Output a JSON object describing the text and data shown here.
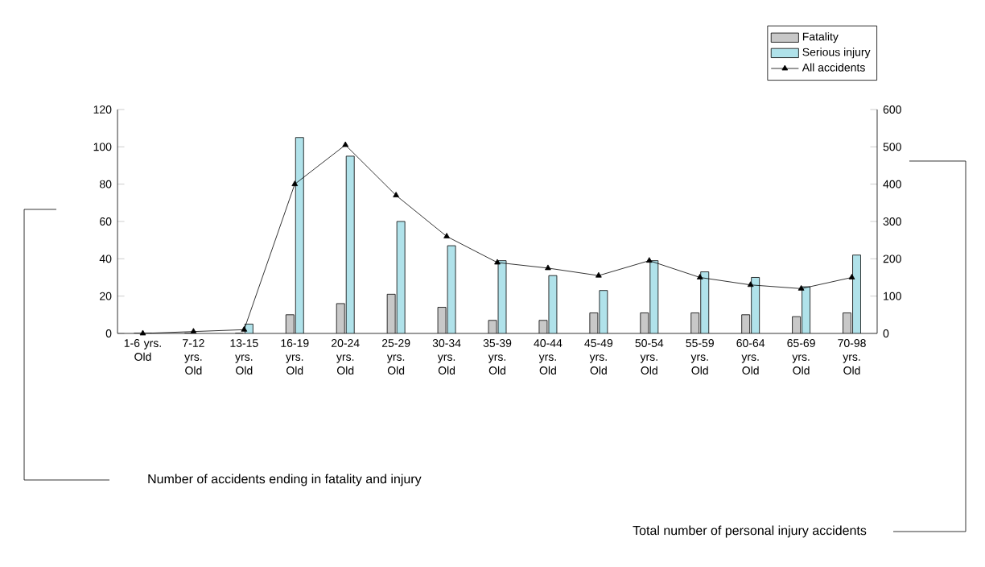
{
  "chart_data": {
    "type": "bar",
    "categories": [
      "1-6 yrs. Old",
      "7-12 yrs. Old",
      "13-15 yrs. Old",
      "16-19 yrs. Old",
      "20-24 yrs. Old",
      "25-29 yrs. Old",
      "30-34 yrs. Old",
      "35-39 yrs. Old",
      "40-44 yrs. Old",
      "45-49 yrs. Old",
      "50-54 yrs. Old",
      "55-59 yrs. Old",
      "60-64 yrs. Old",
      "65-69 yrs. Old",
      "70-98 yrs. Old"
    ],
    "series": [
      {
        "name": "Fatality",
        "color": "#c8c8c8",
        "values": [
          0,
          0,
          0,
          10,
          16,
          21,
          14,
          7,
          7,
          11,
          11,
          11,
          10,
          9,
          11
        ]
      },
      {
        "name": "Serious injury",
        "color": "#b0e2ea",
        "values": [
          0,
          null,
          5,
          105,
          95,
          60,
          47,
          39,
          31,
          23,
          39,
          33,
          30,
          25,
          42
        ]
      },
      {
        "name": "All accidents",
        "type": "line",
        "axis": "y2",
        "color": "#000000",
        "marker": "triangle",
        "values": [
          0,
          5,
          10,
          400,
          505,
          370,
          260,
          190,
          175,
          155,
          195,
          150,
          130,
          120,
          150
        ]
      }
    ],
    "annotations": [
      "Number of accidents ending in fatality and injury",
      "Total number of personal injury accidents"
    ],
    "ylim": [
      0,
      120
    ],
    "yticks": [
      0,
      20,
      40,
      60,
      80,
      100,
      120
    ],
    "y2lim": [
      0,
      600
    ],
    "y2ticks": [
      0,
      100,
      200,
      300,
      400,
      500,
      600
    ],
    "legend": "top right",
    "grid": false
  }
}
